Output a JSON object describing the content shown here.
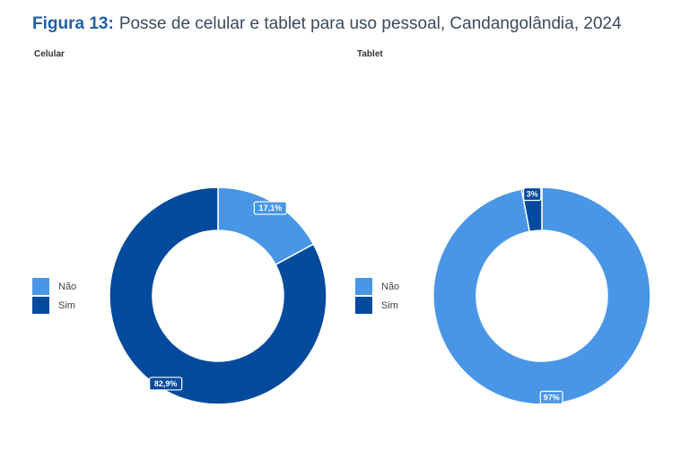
{
  "figure": {
    "label": "Figura 13:",
    "title": "Posse de celular e tablet para uso pessoal, Candangolândia, 2024"
  },
  "colors": {
    "nao": "#4a96e6",
    "sim": "#024a9c"
  },
  "chart_data": [
    {
      "type": "pie",
      "title": "Celular",
      "categories": [
        "Não",
        "Sim"
      ],
      "values": [
        17.1,
        82.9
      ],
      "data_labels": [
        "17,1%",
        "82,9%"
      ],
      "legend": "left"
    },
    {
      "type": "pie",
      "title": "Tablet",
      "categories": [
        "Não",
        "Sim"
      ],
      "values": [
        97,
        3
      ],
      "data_labels": [
        "97%",
        "3%"
      ],
      "legend": "left"
    }
  ]
}
